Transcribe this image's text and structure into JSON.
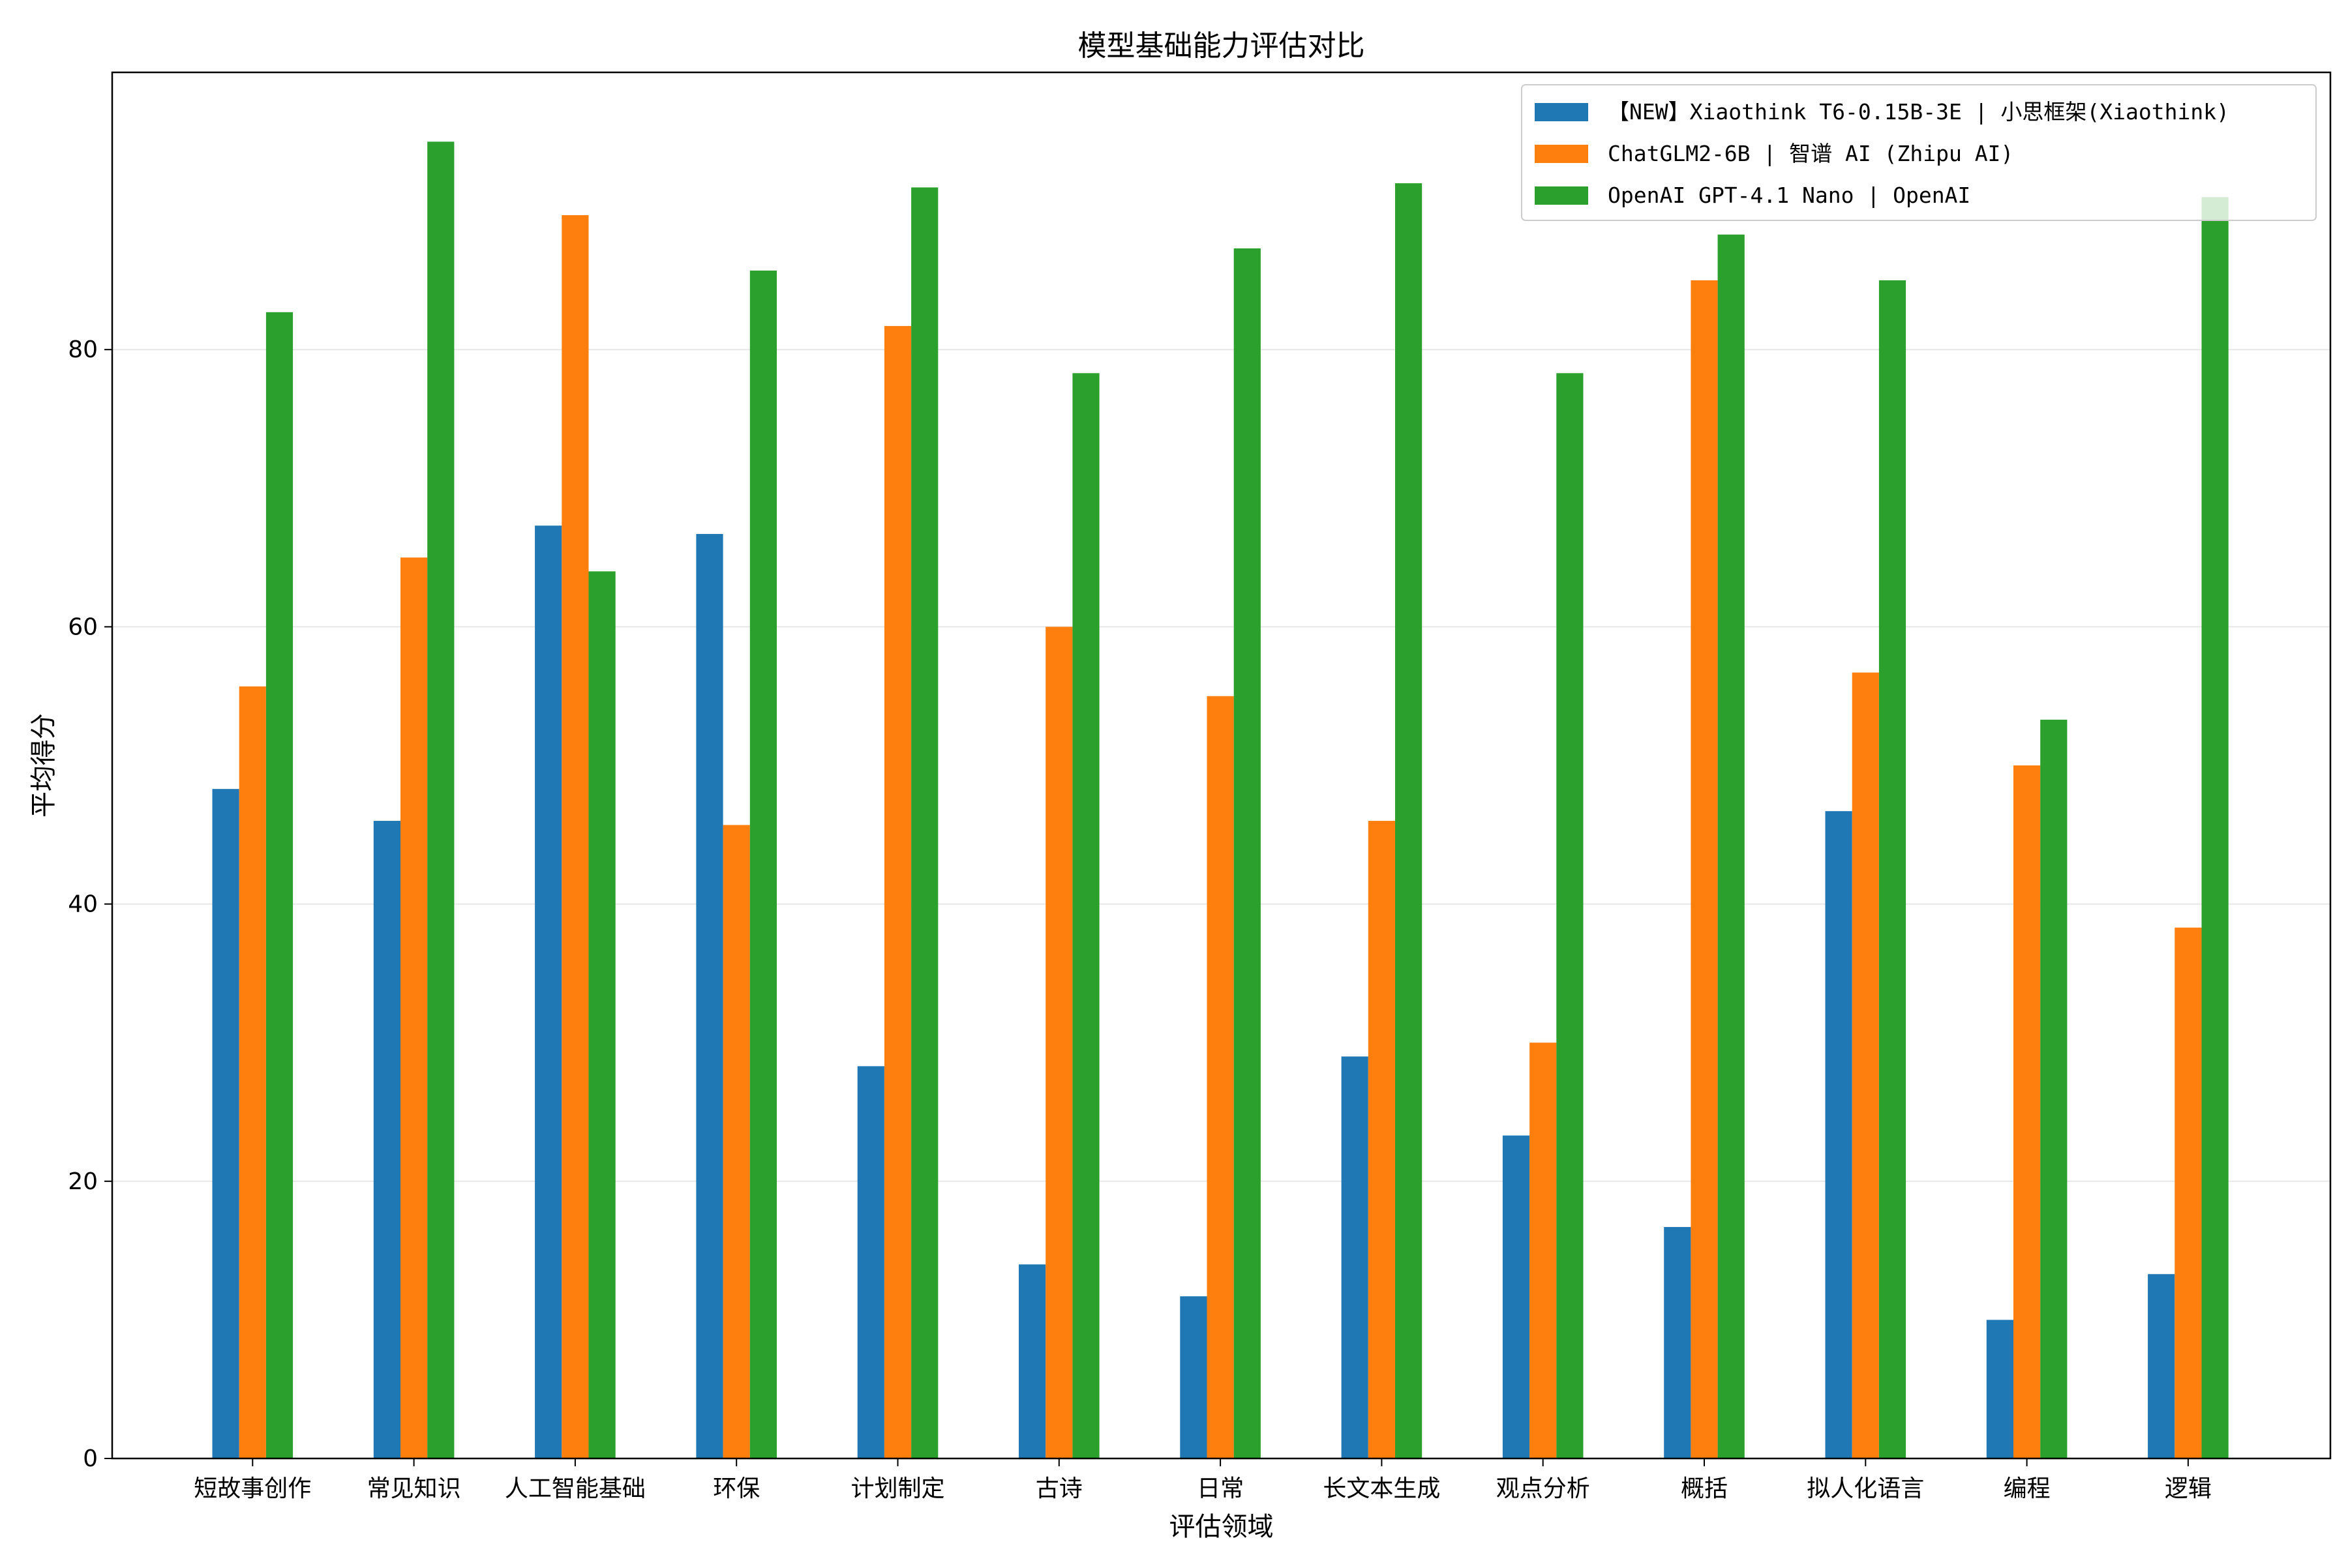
{
  "chart_data": {
    "type": "bar",
    "title": "模型基础能力评估对比",
    "xlabel": "评估领域",
    "ylabel": "平均得分",
    "ylim": [
      0,
      100
    ],
    "yticks": [
      0,
      20,
      40,
      60,
      80
    ],
    "grid": "horizontal",
    "legend_position": "top-right",
    "categories": [
      "短故事创作",
      "常见知识",
      "人工智能基础",
      "环保",
      "计划制定",
      "古诗",
      "日常",
      "长文本生成",
      "观点分析",
      "概括",
      "拟人化语言",
      "编程",
      "逻辑"
    ],
    "series": [
      {
        "name": "【NEW】Xiaothink T6-0.15B-3E  | 小思框架(Xiaothink)",
        "color": "#1f77b4",
        "values": [
          48.3,
          46.0,
          67.3,
          66.7,
          28.3,
          14.0,
          11.7,
          29.0,
          23.3,
          16.7,
          46.7,
          10.0,
          13.3
        ]
      },
      {
        "name": "ChatGLM2-6B | 智谱 AI (Zhipu AI)",
        "color": "#ff7f0e",
        "values": [
          55.7,
          65.0,
          89.7,
          45.7,
          81.7,
          60.0,
          55.0,
          46.0,
          30.0,
          85.0,
          56.7,
          50.0,
          38.3
        ]
      },
      {
        "name": "OpenAI GPT-4.1 Nano | OpenAI",
        "color": "#2ca02c",
        "values": [
          82.7,
          95.0,
          64.0,
          85.7,
          91.7,
          78.3,
          87.3,
          92.0,
          78.3,
          88.3,
          85.0,
          53.3,
          91.0
        ]
      }
    ]
  }
}
